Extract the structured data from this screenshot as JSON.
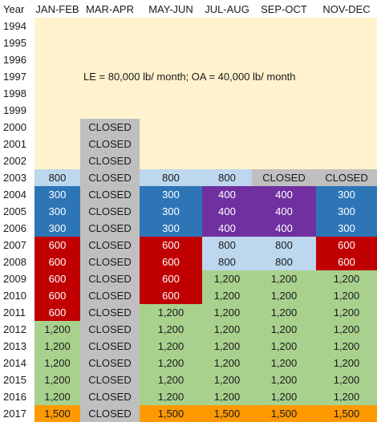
{
  "colors": {
    "cream": "#fff2cc",
    "grey": "#bfbfbf",
    "light_blue": "#bdd7ee",
    "blue": "#2e75b6",
    "purple": "#7030a0",
    "red": "#c00000",
    "green": "#a9d18e",
    "orange": "#ff9900",
    "white": "#ffffff"
  },
  "header": {
    "year_label": "Year",
    "columns": [
      "JAN-FEB",
      "MAR-APR",
      "MAY-JUN",
      "JUL-AUG",
      "SEP-OCT",
      "NOV-DEC"
    ]
  },
  "note": "LE = 80,000 lb/ month; OA = 40,000 lb/ month",
  "years": [
    "1994",
    "1995",
    "1996",
    "1997",
    "1998",
    "1999",
    "2000",
    "2001",
    "2002",
    "2003",
    "2004",
    "2005",
    "2006",
    "2007",
    "2008",
    "2009",
    "2010",
    "2011",
    "2012",
    "2013",
    "2014",
    "2015",
    "2016",
    "2017"
  ],
  "rows": [
    {
      "year": "1994",
      "cells": [
        {
          "text": "",
          "fill": "cream"
        },
        {
          "text": "",
          "fill": "cream"
        },
        {
          "text": "",
          "fill": "cream"
        },
        {
          "text": "",
          "fill": "cream"
        },
        {
          "text": "",
          "fill": "cream"
        },
        {
          "text": "",
          "fill": "cream"
        }
      ]
    },
    {
      "year": "1995",
      "cells": [
        {
          "text": "",
          "fill": "cream"
        },
        {
          "text": "",
          "fill": "cream"
        },
        {
          "text": "",
          "fill": "cream"
        },
        {
          "text": "",
          "fill": "cream"
        },
        {
          "text": "",
          "fill": "cream"
        },
        {
          "text": "",
          "fill": "cream"
        }
      ]
    },
    {
      "year": "1996",
      "cells": [
        {
          "text": "",
          "fill": "cream"
        },
        {
          "text": "",
          "fill": "cream"
        },
        {
          "text": "",
          "fill": "cream"
        },
        {
          "text": "",
          "fill": "cream"
        },
        {
          "text": "",
          "fill": "cream"
        },
        {
          "text": "",
          "fill": "cream"
        }
      ]
    },
    {
      "year": "1997",
      "cells": [
        {
          "text": "",
          "fill": "cream"
        },
        {
          "text": "",
          "fill": "cream"
        },
        {
          "text": "",
          "fill": "cream"
        },
        {
          "text": "",
          "fill": "cream"
        },
        {
          "text": "",
          "fill": "cream"
        },
        {
          "text": "",
          "fill": "cream"
        }
      ]
    },
    {
      "year": "1998",
      "cells": [
        {
          "text": "",
          "fill": "cream"
        },
        {
          "text": "",
          "fill": "cream"
        },
        {
          "text": "",
          "fill": "cream"
        },
        {
          "text": "",
          "fill": "cream"
        },
        {
          "text": "",
          "fill": "cream"
        },
        {
          "text": "",
          "fill": "cream"
        }
      ]
    },
    {
      "year": "1999",
      "cells": [
        {
          "text": "",
          "fill": "cream"
        },
        {
          "text": "",
          "fill": "cream"
        },
        {
          "text": "",
          "fill": "cream"
        },
        {
          "text": "",
          "fill": "cream"
        },
        {
          "text": "",
          "fill": "cream"
        },
        {
          "text": "",
          "fill": "cream"
        }
      ]
    },
    {
      "year": "2000",
      "cells": [
        {
          "text": "",
          "fill": "cream"
        },
        {
          "text": "CLOSED",
          "fill": "grey"
        },
        {
          "text": "",
          "fill": "cream"
        },
        {
          "text": "",
          "fill": "cream"
        },
        {
          "text": "",
          "fill": "cream"
        },
        {
          "text": "",
          "fill": "cream"
        }
      ]
    },
    {
      "year": "2001",
      "cells": [
        {
          "text": "",
          "fill": "cream"
        },
        {
          "text": "CLOSED",
          "fill": "grey"
        },
        {
          "text": "",
          "fill": "cream"
        },
        {
          "text": "",
          "fill": "cream"
        },
        {
          "text": "",
          "fill": "cream"
        },
        {
          "text": "",
          "fill": "cream"
        }
      ]
    },
    {
      "year": "2002",
      "cells": [
        {
          "text": "",
          "fill": "cream"
        },
        {
          "text": "CLOSED",
          "fill": "grey"
        },
        {
          "text": "",
          "fill": "cream"
        },
        {
          "text": "",
          "fill": "cream"
        },
        {
          "text": "",
          "fill": "cream"
        },
        {
          "text": "",
          "fill": "cream"
        }
      ]
    },
    {
      "year": "2003",
      "cells": [
        {
          "text": "800",
          "fill": "light_blue"
        },
        {
          "text": "CLOSED",
          "fill": "grey"
        },
        {
          "text": "800",
          "fill": "light_blue"
        },
        {
          "text": "800",
          "fill": "light_blue"
        },
        {
          "text": "CLOSED",
          "fill": "grey"
        },
        {
          "text": "CLOSED",
          "fill": "grey"
        }
      ]
    },
    {
      "year": "2004",
      "cells": [
        {
          "text": "300",
          "fill": "blue"
        },
        {
          "text": "CLOSED",
          "fill": "grey"
        },
        {
          "text": "300",
          "fill": "blue"
        },
        {
          "text": "400",
          "fill": "purple"
        },
        {
          "text": "400",
          "fill": "purple"
        },
        {
          "text": "300",
          "fill": "blue"
        }
      ]
    },
    {
      "year": "2005",
      "cells": [
        {
          "text": "300",
          "fill": "blue"
        },
        {
          "text": "CLOSED",
          "fill": "grey"
        },
        {
          "text": "300",
          "fill": "blue"
        },
        {
          "text": "400",
          "fill": "purple"
        },
        {
          "text": "400",
          "fill": "purple"
        },
        {
          "text": "300",
          "fill": "blue"
        }
      ]
    },
    {
      "year": "2006",
      "cells": [
        {
          "text": "300",
          "fill": "blue"
        },
        {
          "text": "CLOSED",
          "fill": "grey"
        },
        {
          "text": "300",
          "fill": "blue"
        },
        {
          "text": "400",
          "fill": "purple"
        },
        {
          "text": "400",
          "fill": "purple"
        },
        {
          "text": "300",
          "fill": "blue"
        }
      ]
    },
    {
      "year": "2007",
      "cells": [
        {
          "text": "600",
          "fill": "red"
        },
        {
          "text": "CLOSED",
          "fill": "grey"
        },
        {
          "text": "600",
          "fill": "red"
        },
        {
          "text": "800",
          "fill": "light_blue"
        },
        {
          "text": "800",
          "fill": "light_blue"
        },
        {
          "text": "600",
          "fill": "red"
        }
      ]
    },
    {
      "year": "2008",
      "cells": [
        {
          "text": "600",
          "fill": "red"
        },
        {
          "text": "CLOSED",
          "fill": "grey"
        },
        {
          "text": "600",
          "fill": "red"
        },
        {
          "text": "800",
          "fill": "light_blue"
        },
        {
          "text": "800",
          "fill": "light_blue"
        },
        {
          "text": "600",
          "fill": "red"
        }
      ]
    },
    {
      "year": "2009",
      "cells": [
        {
          "text": "600",
          "fill": "red"
        },
        {
          "text": "CLOSED",
          "fill": "grey"
        },
        {
          "text": "600",
          "fill": "red"
        },
        {
          "text": "1,200",
          "fill": "green"
        },
        {
          "text": "1,200",
          "fill": "green"
        },
        {
          "text": "1,200",
          "fill": "green"
        }
      ]
    },
    {
      "year": "2010",
      "cells": [
        {
          "text": "600",
          "fill": "red"
        },
        {
          "text": "CLOSED",
          "fill": "grey"
        },
        {
          "text": "600",
          "fill": "red"
        },
        {
          "text": "1,200",
          "fill": "green"
        },
        {
          "text": "1,200",
          "fill": "green"
        },
        {
          "text": "1,200",
          "fill": "green"
        }
      ]
    },
    {
      "year": "2011",
      "cells": [
        {
          "text": "600",
          "fill": "red"
        },
        {
          "text": "CLOSED",
          "fill": "grey"
        },
        {
          "text": "1,200",
          "fill": "green"
        },
        {
          "text": "1,200",
          "fill": "green"
        },
        {
          "text": "1,200",
          "fill": "green"
        },
        {
          "text": "1,200",
          "fill": "green"
        }
      ]
    },
    {
      "year": "2012",
      "cells": [
        {
          "text": "1,200",
          "fill": "green"
        },
        {
          "text": "CLOSED",
          "fill": "grey"
        },
        {
          "text": "1,200",
          "fill": "green"
        },
        {
          "text": "1,200",
          "fill": "green"
        },
        {
          "text": "1,200",
          "fill": "green"
        },
        {
          "text": "1,200",
          "fill": "green"
        }
      ]
    },
    {
      "year": "2013",
      "cells": [
        {
          "text": "1,200",
          "fill": "green"
        },
        {
          "text": "CLOSED",
          "fill": "grey"
        },
        {
          "text": "1,200",
          "fill": "green"
        },
        {
          "text": "1,200",
          "fill": "green"
        },
        {
          "text": "1,200",
          "fill": "green"
        },
        {
          "text": "1,200",
          "fill": "green"
        }
      ]
    },
    {
      "year": "2014",
      "cells": [
        {
          "text": "1,200",
          "fill": "green"
        },
        {
          "text": "CLOSED",
          "fill": "grey"
        },
        {
          "text": "1,200",
          "fill": "green"
        },
        {
          "text": "1,200",
          "fill": "green"
        },
        {
          "text": "1,200",
          "fill": "green"
        },
        {
          "text": "1,200",
          "fill": "green"
        }
      ]
    },
    {
      "year": "2015",
      "cells": [
        {
          "text": "1,200",
          "fill": "green"
        },
        {
          "text": "CLOSED",
          "fill": "grey"
        },
        {
          "text": "1,200",
          "fill": "green"
        },
        {
          "text": "1,200",
          "fill": "green"
        },
        {
          "text": "1,200",
          "fill": "green"
        },
        {
          "text": "1,200",
          "fill": "green"
        }
      ]
    },
    {
      "year": "2016",
      "cells": [
        {
          "text": "1,200",
          "fill": "green"
        },
        {
          "text": "CLOSED",
          "fill": "grey"
        },
        {
          "text": "1,200",
          "fill": "green"
        },
        {
          "text": "1,200",
          "fill": "green"
        },
        {
          "text": "1,200",
          "fill": "green"
        },
        {
          "text": "1,200",
          "fill": "green"
        }
      ]
    },
    {
      "year": "2017",
      "cells": [
        {
          "text": "1,500",
          "fill": "orange"
        },
        {
          "text": "CLOSED",
          "fill": "grey"
        },
        {
          "text": "1,500",
          "fill": "orange"
        },
        {
          "text": "1,500",
          "fill": "orange"
        },
        {
          "text": "1,500",
          "fill": "orange"
        },
        {
          "text": "1,500",
          "fill": "orange"
        }
      ]
    }
  ]
}
